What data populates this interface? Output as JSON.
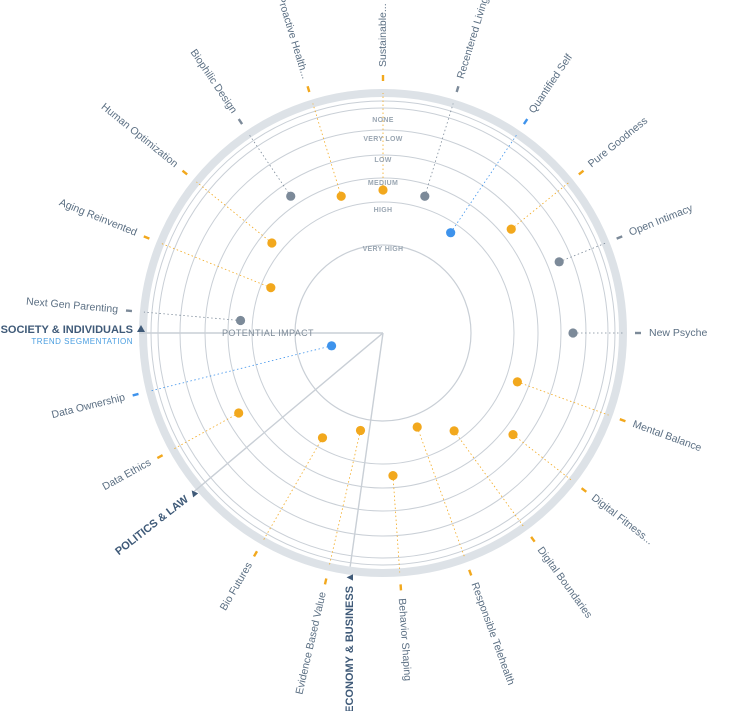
{
  "colors": {
    "orange": "#F2A81D",
    "gray": "#7C8A99",
    "blue": "#3E93EC",
    "ring": "#C9CFD6",
    "category": "#3F5A78",
    "segmentation": "#4A9EE0"
  },
  "center_label": "POTENTIAL IMPACT",
  "chart_data": {
    "type": "radar",
    "levels": [
      "NONE",
      "VERY LOW",
      "LOW",
      "MEDIUM",
      "HIGH",
      "VERY HIGH"
    ],
    "categories": [
      {
        "name": "SOCIETY & INDIVIDUALS",
        "sublabel": "TREND SEGMENTATION"
      },
      {
        "name": "POLITICS & LAW",
        "sublabel": ""
      },
      {
        "name": "ECONOMY & BUSINESS",
        "sublabel": ""
      }
    ],
    "trends": [
      {
        "name": "New Psyche",
        "category": "SOCIETY & INDIVIDUALS",
        "impact": "NONE",
        "color": "gray"
      },
      {
        "name": "Open Intimacy",
        "category": "SOCIETY & INDIVIDUALS",
        "impact": "NONE",
        "color": "gray"
      },
      {
        "name": "Pure Goodness",
        "category": "SOCIETY & INDIVIDUALS",
        "impact": "VERY LOW",
        "color": "orange"
      },
      {
        "name": "Quantified Self",
        "category": "SOCIETY & INDIVIDUALS",
        "impact": "MEDIUM",
        "color": "blue"
      },
      {
        "name": "Recentered Living",
        "category": "SOCIETY & INDIVIDUALS",
        "impact": "LOW",
        "color": "gray"
      },
      {
        "name": "Sustainable...",
        "category": "SOCIETY & INDIVIDUALS",
        "impact": "LOW",
        "color": "orange"
      },
      {
        "name": "Proactive Health...",
        "category": "SOCIETY & INDIVIDUALS",
        "impact": "LOW",
        "color": "orange"
      },
      {
        "name": "Biophilic Design",
        "category": "SOCIETY & INDIVIDUALS",
        "impact": "VERY LOW",
        "color": "gray"
      },
      {
        "name": "Human Optimization",
        "category": "SOCIETY & INDIVIDUALS",
        "impact": "LOW",
        "color": "orange"
      },
      {
        "name": "Aging Reinvented",
        "category": "SOCIETY & INDIVIDUALS",
        "impact": "MEDIUM",
        "color": "orange"
      },
      {
        "name": "Next Gen Parenting",
        "category": "SOCIETY & INDIVIDUALS",
        "impact": "LOW",
        "color": "gray"
      },
      {
        "name": "Data Ownership",
        "category": "POLITICS & LAW",
        "impact": "VERY HIGH",
        "color": "blue"
      },
      {
        "name": "Data Ethics",
        "category": "POLITICS & LAW",
        "impact": "VERY LOW",
        "color": "orange"
      },
      {
        "name": "Bio Futures",
        "category": "ECONOMY & BUSINESS",
        "impact": "MEDIUM",
        "color": "orange"
      },
      {
        "name": "Evidence Based Value",
        "category": "ECONOMY & BUSINESS",
        "impact": "HIGH",
        "color": "orange"
      },
      {
        "name": "Behavior Shaping",
        "category": "ECONOMY & BUSINESS",
        "impact": "LOW",
        "color": "orange"
      },
      {
        "name": "Responsible Telehealth",
        "category": "ECONOMY & BUSINESS",
        "impact": "HIGH",
        "color": "orange"
      },
      {
        "name": "Digital Boundaries",
        "category": "ECONOMY & BUSINESS",
        "impact": "MEDIUM",
        "color": "orange"
      },
      {
        "name": "Digital Fitness...",
        "category": "ECONOMY & BUSINESS",
        "impact": "VERY LOW",
        "color": "orange"
      },
      {
        "name": "Mental Balance",
        "category": "ECONOMY & BUSINESS",
        "impact": "LOW",
        "color": "orange"
      }
    ]
  }
}
